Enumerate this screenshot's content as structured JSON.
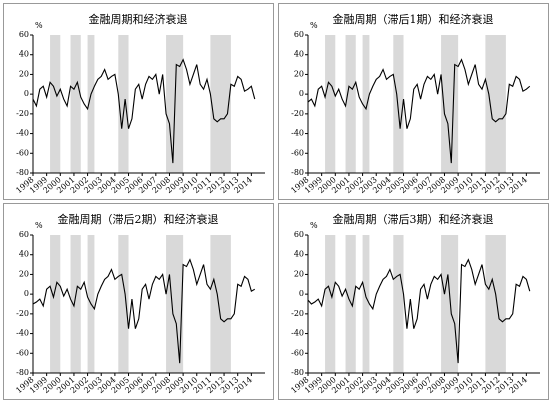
{
  "chart_data": [
    {
      "type": "line",
      "title": "金融周期和经济衰退",
      "y_label": "%",
      "color": "#000000",
      "shade_color": "#d9d9d9",
      "xlim": [
        1998,
        2015
      ],
      "xticks": [
        1998,
        1999,
        2000,
        2001,
        2002,
        2003,
        2004,
        2005,
        2006,
        2007,
        2008,
        2009,
        2010,
        2011,
        2012,
        2013,
        2014
      ],
      "ylim": [
        -80,
        60
      ],
      "yticks": [
        -80,
        -60,
        -40,
        -20,
        0,
        20,
        40,
        60
      ],
      "shaded_periods": [
        [
          1999.25,
          2000
        ],
        [
          2000.75,
          2001.5
        ],
        [
          2002,
          2002.5
        ],
        [
          2004.25,
          2005
        ],
        [
          2007.75,
          2009
        ],
        [
          2011,
          2012.5
        ]
      ],
      "x": [
        1998,
        1998.25,
        1998.5,
        1998.75,
        1999,
        1999.25,
        1999.5,
        1999.75,
        2000,
        2000.25,
        2000.5,
        2000.75,
        2001,
        2001.25,
        2001.5,
        2001.75,
        2002,
        2002.25,
        2002.5,
        2002.75,
        2003,
        2003.25,
        2003.5,
        2003.75,
        2004,
        2004.25,
        2004.5,
        2004.75,
        2005,
        2005.25,
        2005.5,
        2005.75,
        2006,
        2006.25,
        2006.5,
        2006.75,
        2007,
        2007.25,
        2007.5,
        2007.75,
        2008,
        2008.25,
        2008.5,
        2008.75,
        2009,
        2009.25,
        2009.5,
        2009.75,
        2010,
        2010.25,
        2010.5,
        2010.75,
        2011,
        2011.25,
        2011.5,
        2011.75,
        2012,
        2012.25,
        2012.5,
        2012.75,
        2013,
        2013.25,
        2013.5,
        2013.75,
        2014,
        2014.25
      ],
      "values": [
        -5,
        -12,
        5,
        8,
        -3,
        12,
        8,
        -2,
        5,
        -5,
        -12,
        8,
        5,
        12,
        -3,
        -10,
        -15,
        0,
        8,
        15,
        18,
        25,
        15,
        18,
        20,
        0,
        -35,
        -5,
        -35,
        -25,
        5,
        10,
        -5,
        10,
        18,
        15,
        20,
        0,
        20,
        -20,
        -30,
        -70,
        30,
        28,
        35,
        25,
        10,
        20,
        30,
        10,
        5,
        15,
        0,
        -25,
        -28,
        -25,
        -25,
        -20,
        10,
        8,
        18,
        15,
        3,
        5,
        8,
        -5
      ]
    },
    {
      "type": "line",
      "title": "金融周期（滞后1期）和经济衰退",
      "y_label": "%",
      "color": "#000000",
      "shade_color": "#d9d9d9",
      "xlim": [
        1998,
        2015
      ],
      "xticks": [
        1998,
        1999,
        2000,
        2001,
        2002,
        2003,
        2004,
        2005,
        2006,
        2007,
        2008,
        2009,
        2010,
        2011,
        2012,
        2013,
        2014
      ],
      "ylim": [
        -80,
        60
      ],
      "yticks": [
        -80,
        -60,
        -40,
        -20,
        0,
        20,
        40,
        60
      ],
      "shaded_periods": [
        [
          1999.25,
          2000
        ],
        [
          2000.75,
          2001.5
        ],
        [
          2002,
          2002.5
        ],
        [
          2004.25,
          2005
        ],
        [
          2007.75,
          2009
        ],
        [
          2011,
          2012.5
        ]
      ],
      "x": [
        1998,
        1998.25,
        1998.5,
        1998.75,
        1999,
        1999.25,
        1999.5,
        1999.75,
        2000,
        2000.25,
        2000.5,
        2000.75,
        2001,
        2001.25,
        2001.5,
        2001.75,
        2002,
        2002.25,
        2002.5,
        2002.75,
        2003,
        2003.25,
        2003.5,
        2003.75,
        2004,
        2004.25,
        2004.5,
        2004.75,
        2005,
        2005.25,
        2005.5,
        2005.75,
        2006,
        2006.25,
        2006.5,
        2006.75,
        2007,
        2007.25,
        2007.5,
        2007.75,
        2008,
        2008.25,
        2008.5,
        2008.75,
        2009,
        2009.25,
        2009.5,
        2009.75,
        2010,
        2010.25,
        2010.5,
        2010.75,
        2011,
        2011.25,
        2011.5,
        2011.75,
        2012,
        2012.25,
        2012.5,
        2012.75,
        2013,
        2013.25,
        2013.5,
        2013.75,
        2014,
        2014.25
      ],
      "values": [
        -8,
        -5,
        -12,
        5,
        8,
        -3,
        12,
        8,
        -2,
        5,
        -5,
        -12,
        8,
        5,
        12,
        -3,
        -10,
        -15,
        0,
        8,
        15,
        18,
        25,
        15,
        18,
        20,
        0,
        -35,
        -5,
        -35,
        -25,
        5,
        10,
        -5,
        10,
        18,
        15,
        20,
        0,
        20,
        -20,
        -30,
        -70,
        30,
        28,
        35,
        25,
        10,
        20,
        30,
        10,
        5,
        15,
        0,
        -25,
        -28,
        -25,
        -25,
        -20,
        10,
        8,
        18,
        15,
        3,
        5,
        8
      ]
    },
    {
      "type": "line",
      "title": "金融周期（滞后2期）和经济衰退",
      "y_label": "%",
      "color": "#000000",
      "shade_color": "#d9d9d9",
      "xlim": [
        1998,
        2015
      ],
      "xticks": [
        1998,
        1999,
        2000,
        2001,
        2002,
        2003,
        2004,
        2005,
        2006,
        2007,
        2008,
        2009,
        2010,
        2011,
        2012,
        2013,
        2014
      ],
      "ylim": [
        -80,
        60
      ],
      "yticks": [
        -80,
        -60,
        -40,
        -20,
        0,
        20,
        40,
        60
      ],
      "shaded_periods": [
        [
          1999.25,
          2000
        ],
        [
          2000.75,
          2001.5
        ],
        [
          2002,
          2002.5
        ],
        [
          2004.25,
          2005
        ],
        [
          2007.75,
          2009
        ],
        [
          2011,
          2012.5
        ]
      ],
      "x": [
        1998,
        1998.25,
        1998.5,
        1998.75,
        1999,
        1999.25,
        1999.5,
        1999.75,
        2000,
        2000.25,
        2000.5,
        2000.75,
        2001,
        2001.25,
        2001.5,
        2001.75,
        2002,
        2002.25,
        2002.5,
        2002.75,
        2003,
        2003.25,
        2003.5,
        2003.75,
        2004,
        2004.25,
        2004.5,
        2004.75,
        2005,
        2005.25,
        2005.5,
        2005.75,
        2006,
        2006.25,
        2006.5,
        2006.75,
        2007,
        2007.25,
        2007.5,
        2007.75,
        2008,
        2008.25,
        2008.5,
        2008.75,
        2009,
        2009.25,
        2009.5,
        2009.75,
        2010,
        2010.25,
        2010.5,
        2010.75,
        2011,
        2011.25,
        2011.5,
        2011.75,
        2012,
        2012.25,
        2012.5,
        2012.75,
        2013,
        2013.25,
        2013.5,
        2013.75,
        2014,
        2014.25
      ],
      "values": [
        -10,
        -8,
        -5,
        -12,
        5,
        8,
        -3,
        12,
        8,
        -2,
        5,
        -5,
        -12,
        8,
        5,
        12,
        -3,
        -10,
        -15,
        0,
        8,
        15,
        18,
        25,
        15,
        18,
        20,
        0,
        -35,
        -5,
        -35,
        -25,
        5,
        10,
        -5,
        10,
        18,
        15,
        20,
        0,
        20,
        -20,
        -30,
        -70,
        30,
        28,
        35,
        25,
        10,
        20,
        30,
        10,
        5,
        15,
        0,
        -25,
        -28,
        -25,
        -25,
        -20,
        10,
        8,
        18,
        15,
        3,
        5
      ]
    },
    {
      "type": "line",
      "title": "金融周期（滞后3期）和经济衰退",
      "y_label": "%",
      "color": "#000000",
      "shade_color": "#d9d9d9",
      "xlim": [
        1998,
        2015
      ],
      "xticks": [
        1998,
        1999,
        2000,
        2001,
        2002,
        2003,
        2004,
        2005,
        2006,
        2007,
        2008,
        2009,
        2010,
        2011,
        2012,
        2013,
        2014
      ],
      "ylim": [
        -80,
        60
      ],
      "yticks": [
        -80,
        -60,
        -40,
        -20,
        0,
        20,
        40,
        60
      ],
      "shaded_periods": [
        [
          1999.25,
          2000
        ],
        [
          2000.75,
          2001.5
        ],
        [
          2002,
          2002.5
        ],
        [
          2004.25,
          2005
        ],
        [
          2007.75,
          2009
        ],
        [
          2011,
          2012.5
        ]
      ],
      "x": [
        1998,
        1998.25,
        1998.5,
        1998.75,
        1999,
        1999.25,
        1999.5,
        1999.75,
        2000,
        2000.25,
        2000.5,
        2000.75,
        2001,
        2001.25,
        2001.5,
        2001.75,
        2002,
        2002.25,
        2002.5,
        2002.75,
        2003,
        2003.25,
        2003.5,
        2003.75,
        2004,
        2004.25,
        2004.5,
        2004.75,
        2005,
        2005.25,
        2005.5,
        2005.75,
        2006,
        2006.25,
        2006.5,
        2006.75,
        2007,
        2007.25,
        2007.5,
        2007.75,
        2008,
        2008.25,
        2008.5,
        2008.75,
        2009,
        2009.25,
        2009.5,
        2009.75,
        2010,
        2010.25,
        2010.5,
        2010.75,
        2011,
        2011.25,
        2011.5,
        2011.75,
        2012,
        2012.25,
        2012.5,
        2012.75,
        2013,
        2013.25,
        2013.5,
        2013.75,
        2014,
        2014.25
      ],
      "values": [
        -6,
        -10,
        -8,
        -5,
        -12,
        5,
        8,
        -3,
        12,
        8,
        -2,
        5,
        -5,
        -12,
        8,
        5,
        12,
        -3,
        -10,
        -15,
        0,
        8,
        15,
        18,
        25,
        15,
        18,
        20,
        0,
        -35,
        -5,
        -35,
        -25,
        5,
        10,
        -5,
        10,
        18,
        15,
        20,
        0,
        20,
        -20,
        -30,
        -70,
        30,
        28,
        35,
        25,
        10,
        20,
        30,
        10,
        5,
        15,
        0,
        -25,
        -28,
        -25,
        -25,
        -20,
        10,
        8,
        18,
        15,
        3
      ]
    }
  ]
}
